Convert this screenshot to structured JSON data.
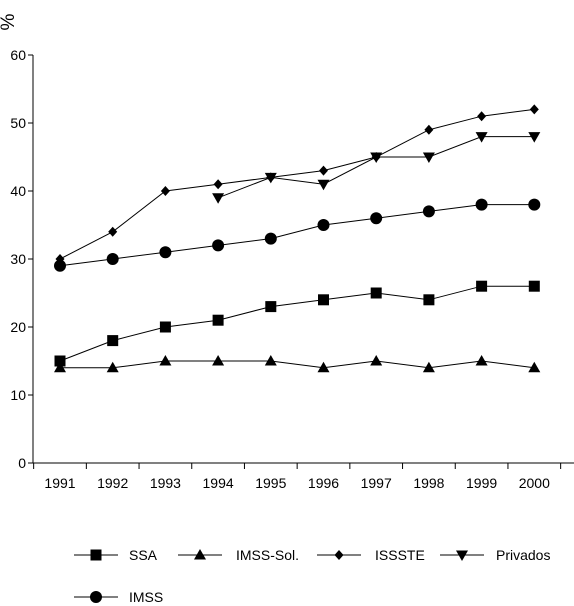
{
  "chart_data": {
    "type": "line",
    "ylabel": "%",
    "xlabel": "",
    "title": "",
    "ylim": [
      0,
      60
    ],
    "yticks": [
      0,
      10,
      20,
      30,
      40,
      50,
      60
    ],
    "categories": [
      "1991",
      "1992",
      "1993",
      "1994",
      "1995",
      "1996",
      "1997",
      "1998",
      "1999",
      "2000"
    ],
    "grid": false,
    "legend_position": "bottom",
    "series": [
      {
        "name": "SSA",
        "marker": "square",
        "values": [
          15,
          18,
          20,
          21,
          23,
          24,
          25,
          24,
          26,
          26
        ]
      },
      {
        "name": "IMSS-Sol.",
        "marker": "triangle-up",
        "values": [
          14,
          14,
          15,
          15,
          15,
          14,
          15,
          14,
          15,
          14
        ]
      },
      {
        "name": "ISSSTE",
        "marker": "diamond",
        "values": [
          30,
          34,
          40,
          41,
          42,
          43,
          45,
          49,
          51,
          52
        ]
      },
      {
        "name": "Privados",
        "marker": "triangle-down",
        "values": [
          null,
          null,
          null,
          39,
          42,
          41,
          45,
          45,
          48,
          48
        ]
      },
      {
        "name": "IMSS",
        "marker": "circle",
        "values": [
          29,
          30,
          31,
          32,
          33,
          35,
          36,
          37,
          38,
          38
        ]
      }
    ]
  }
}
